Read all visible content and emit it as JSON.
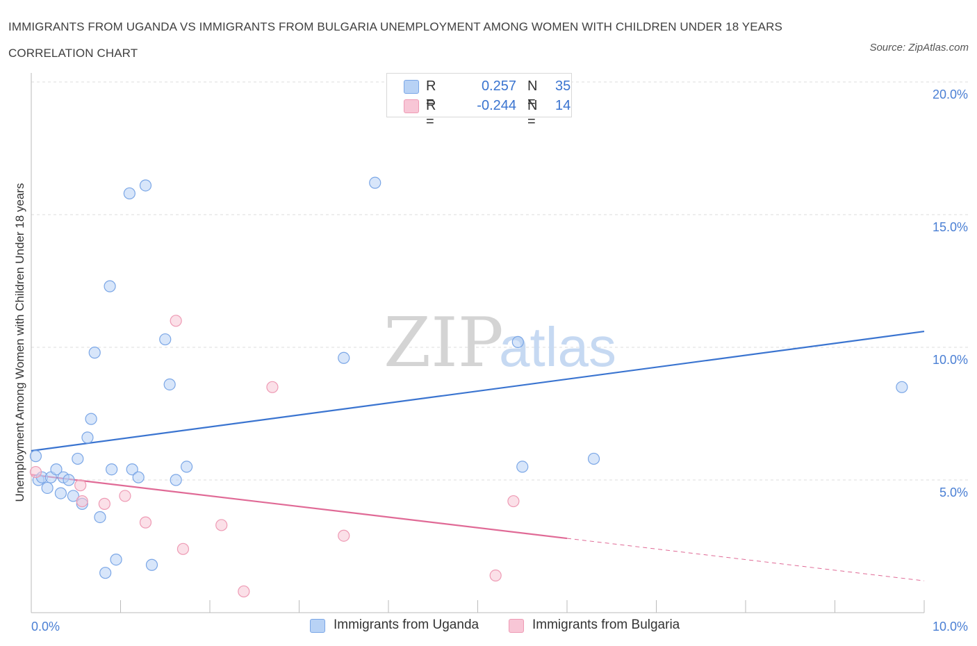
{
  "title": "IMMIGRANTS FROM UGANDA VS IMMIGRANTS FROM BULGARIA UNEMPLOYMENT AMONG WOMEN WITH CHILDREN UNDER 18 YEARS CORRELATION CHART",
  "source": "Source: ZipAtlas.com",
  "watermark": {
    "zip": "ZIP",
    "atlas": "atlas"
  },
  "colors": {
    "uganda_fill": "#b8d2f5",
    "uganda_stroke": "#7aa6e6",
    "uganda_line": "#3a74d0",
    "bulgaria_fill": "#f8c6d6",
    "bulgaria_stroke": "#ee9ab4",
    "bulgaria_line": "#e06a96",
    "tick_text": "#4a7fd4",
    "grid": "#dddddd"
  },
  "legend_top": {
    "rows": [
      {
        "r_label": "R =",
        "r_value": "0.257",
        "n_label": "N =",
        "n_value": "35"
      },
      {
        "r_label": "R =",
        "r_value": "-0.244",
        "n_label": "N =",
        "n_value": "14"
      }
    ]
  },
  "legend_bottom": [
    "Immigrants from Uganda",
    "Immigrants from Bulgaria"
  ],
  "chart_data": {
    "type": "scatter",
    "title": "IMMIGRANTS FROM UGANDA VS IMMIGRANTS FROM BULGARIA UNEMPLOYMENT AMONG WOMEN WITH CHILDREN UNDER 18 YEARS CORRELATION CHART",
    "xlabel": "",
    "ylabel": "Unemployment Among Women with Children Under 18 years",
    "xlim": [
      0,
      10
    ],
    "ylim": [
      0,
      20
    ],
    "x_tick_labels": [
      "0.0%",
      "10.0%"
    ],
    "y_ticks": [
      5,
      10,
      15,
      20
    ],
    "y_tick_labels": [
      "5.0%",
      "10.0%",
      "15.0%",
      "20.0%"
    ],
    "legend_position": "top-center",
    "series": [
      {
        "name": "Immigrants from Uganda",
        "r": 0.257,
        "n": 35,
        "points": [
          [
            0.05,
            5.9
          ],
          [
            0.08,
            5.0
          ],
          [
            0.12,
            5.1
          ],
          [
            0.18,
            4.7
          ],
          [
            0.22,
            5.1
          ],
          [
            0.28,
            5.4
          ],
          [
            0.33,
            4.5
          ],
          [
            0.36,
            5.1
          ],
          [
            0.42,
            5.0
          ],
          [
            0.47,
            4.4
          ],
          [
            0.52,
            5.8
          ],
          [
            0.57,
            4.1
          ],
          [
            0.63,
            6.6
          ],
          [
            0.67,
            7.3
          ],
          [
            0.71,
            9.8
          ],
          [
            0.77,
            3.6
          ],
          [
            0.83,
            1.5
          ],
          [
            0.88,
            12.3
          ],
          [
            0.9,
            5.4
          ],
          [
            0.95,
            2.0
          ],
          [
            1.1,
            15.8
          ],
          [
            1.13,
            5.4
          ],
          [
            1.2,
            5.1
          ],
          [
            1.28,
            16.1
          ],
          [
            1.35,
            1.8
          ],
          [
            1.5,
            10.3
          ],
          [
            1.55,
            8.6
          ],
          [
            1.62,
            5.0
          ],
          [
            1.74,
            5.5
          ],
          [
            3.5,
            9.6
          ],
          [
            3.85,
            16.2
          ],
          [
            5.45,
            10.2
          ],
          [
            5.5,
            5.5
          ],
          [
            6.3,
            5.8
          ],
          [
            9.75,
            8.5
          ]
        ],
        "trend": {
          "x0": 0,
          "y0": 6.1,
          "x1": 10,
          "y1": 10.6
        }
      },
      {
        "name": "Immigrants from Bulgaria",
        "r": -0.244,
        "n": 14,
        "points": [
          [
            0.05,
            5.3
          ],
          [
            0.55,
            4.8
          ],
          [
            0.57,
            4.2
          ],
          [
            0.82,
            4.1
          ],
          [
            1.05,
            4.4
          ],
          [
            1.28,
            3.4
          ],
          [
            1.62,
            11.0
          ],
          [
            1.7,
            2.4
          ],
          [
            2.13,
            3.3
          ],
          [
            2.38,
            0.8
          ],
          [
            2.7,
            8.5
          ],
          [
            3.5,
            2.9
          ],
          [
            5.2,
            1.4
          ],
          [
            5.4,
            4.2
          ]
        ],
        "trend": {
          "x0": 0,
          "y0": 5.2,
          "x1": 6.0,
          "y1": 2.8
        },
        "trend_dashed": {
          "x0": 6.0,
          "y0": 2.8,
          "x1": 10,
          "y1": 1.2
        }
      }
    ]
  }
}
